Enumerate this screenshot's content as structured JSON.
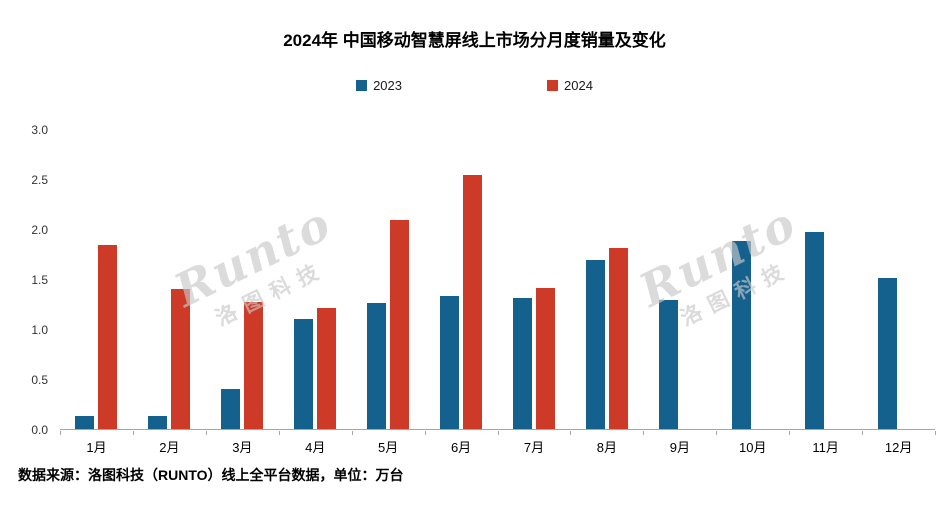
{
  "title": "2024年 中国移动智慧屏线上市场分月度销量及变化",
  "legend": [
    {
      "label": "2023",
      "color": "#15618e"
    },
    {
      "label": "2024",
      "color": "#cd3a27"
    }
  ],
  "watermark_en": "Runto",
  "watermark_cn": "洛图科技",
  "source_note": "数据来源：洛图科技（RUNTO）线上全平台数据，单位：万台",
  "chart_data": {
    "type": "bar",
    "title": "2024年 中国移动智慧屏线上市场分月度销量及变化",
    "categories": [
      "1月",
      "2月",
      "3月",
      "4月",
      "5月",
      "6月",
      "7月",
      "8月",
      "9月",
      "10月",
      "11月",
      "12月"
    ],
    "series": [
      {
        "name": "2023",
        "color": "#15618e",
        "values": [
          0.13,
          0.13,
          0.4,
          1.1,
          1.26,
          1.33,
          1.31,
          1.7,
          1.29,
          1.89,
          1.98,
          1.52
        ]
      },
      {
        "name": "2024",
        "color": "#cd3a27",
        "values": [
          1.85,
          1.4,
          1.27,
          1.21,
          2.1,
          2.55,
          1.41,
          1.82,
          null,
          null,
          null,
          null
        ]
      }
    ],
    "xlabel": "",
    "ylabel": "",
    "unit": "万台",
    "ylim": [
      0,
      3.0
    ],
    "yticks": [
      0.0,
      0.5,
      1.0,
      1.5,
      2.0,
      2.5,
      3.0
    ],
    "grid": false,
    "legend_position": "top"
  }
}
